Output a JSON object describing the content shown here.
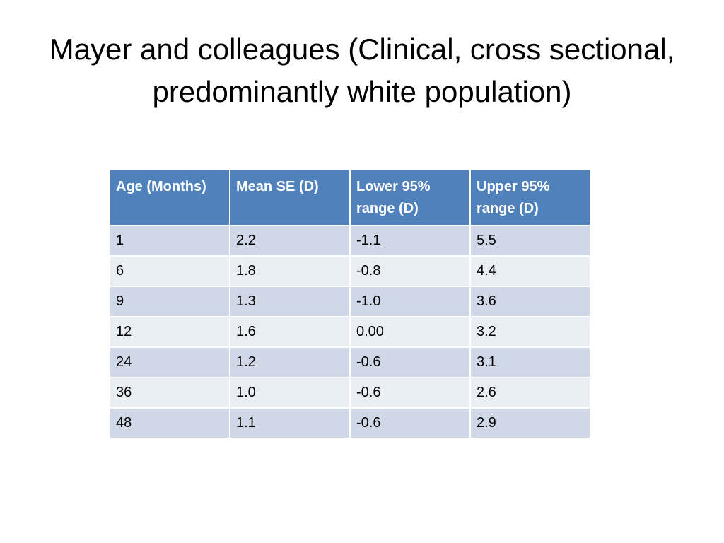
{
  "slide": {
    "title": "Mayer and colleagues (Clinical, cross sectional, predominantly white population)"
  },
  "table": {
    "headers": [
      "Age (Months)",
      "Mean SE (D)",
      "Lower 95% range (D)",
      " Upper 95% range (D)"
    ],
    "rows": [
      [
        "1",
        "2.2",
        "-1.1",
        "5.5"
      ],
      [
        "6",
        "1.8",
        "-0.8",
        "4.4"
      ],
      [
        "9",
        "1.3",
        "-1.0",
        "3.6"
      ],
      [
        "12",
        "1.6",
        "0.00",
        "3.2"
      ],
      [
        "24",
        "1.2",
        "-0.6",
        "3.1"
      ],
      [
        "36",
        "1.0",
        "-0.6",
        "2.6"
      ],
      [
        "48",
        "1.1",
        "-0.6",
        "2.9"
      ]
    ]
  },
  "colors": {
    "header_bg": "#4f81bd",
    "row_odd_bg": "#d0d8e8",
    "row_even_bg": "#e9edf4"
  }
}
